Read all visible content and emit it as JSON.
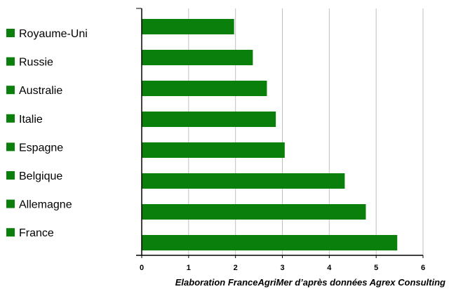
{
  "chart_data": {
    "type": "bar",
    "orientation": "horizontal",
    "categories": [
      "Royaume-Uni",
      "Russie",
      "Australie",
      "Italie",
      "Espagne",
      "Belgique",
      "Allemagne",
      "France"
    ],
    "values": [
      1.97,
      2.37,
      2.67,
      2.86,
      3.05,
      4.33,
      4.78,
      5.45
    ],
    "title": "",
    "xlabel": "",
    "ylabel": "",
    "xlim": [
      0,
      6
    ],
    "xticks": [
      "0",
      "1",
      "2",
      "3",
      "4",
      "5",
      "6"
    ],
    "grid": "vertical",
    "legend": "left",
    "bar_color": "#0b7f0b",
    "grid_color": "#c0c0c0"
  },
  "source_note": "Elaboration FranceAgriMer d’après données Agrex Consulting"
}
